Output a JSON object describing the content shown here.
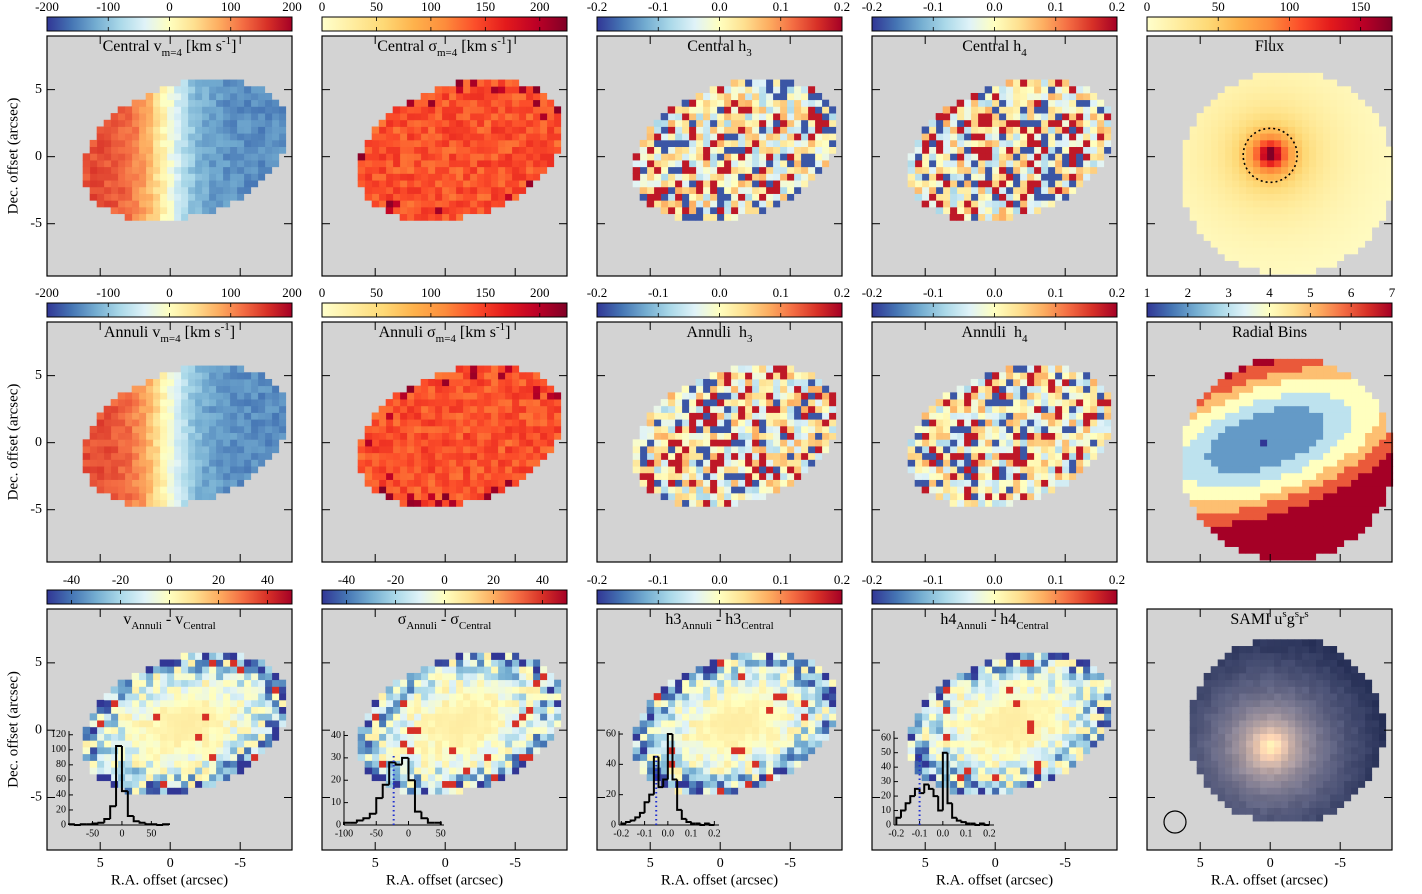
{
  "axes": {
    "xlabel": "R.A. offset (arcsec)",
    "ylabel": "Dec. offset (arcsec)",
    "xlim": [
      8.8,
      -8.7
    ],
    "ylim": [
      -8.9,
      9.0
    ],
    "xticks": [
      5,
      0,
      -5
    ],
    "yticks": [
      -5,
      0,
      5
    ]
  },
  "panels": [
    {
      "title": [
        {
          "text": "Central v"
        },
        {
          "text": "m=4",
          "shift": "sub"
        },
        {
          "text": " [km s"
        },
        {
          "text": "-1",
          "shift": "super"
        },
        {
          "text": "]"
        }
      ],
      "map": "velocity",
      "colorbar": {
        "cmap": "RdYlBu_r",
        "lim": [
          -200,
          200
        ],
        "ticks": [
          -200,
          -100,
          0,
          100,
          200
        ]
      }
    },
    {
      "title": [
        {
          "text": "Central σ"
        },
        {
          "text": "m=4",
          "shift": "sub"
        },
        {
          "text": " [km s"
        },
        {
          "text": "-1",
          "shift": "super"
        },
        {
          "text": "]"
        }
      ],
      "map": "dispersion",
      "colorbar": {
        "cmap": "YlOrRd",
        "lim": [
          0,
          225
        ],
        "ticks": [
          0,
          50,
          100,
          150,
          200
        ]
      }
    },
    {
      "title": [
        {
          "text": "Central h"
        },
        {
          "text": "3",
          "shift": "sub"
        }
      ],
      "map": "moment",
      "colorbar": {
        "cmap": "RdYlBu_r",
        "lim": [
          -0.2,
          0.2
        ],
        "ticks": [
          -0.2,
          -0.1,
          {
            "value": 0,
            "label": "0.0"
          },
          0.1,
          0.2
        ]
      }
    },
    {
      "title": [
        {
          "text": "Central h"
        },
        {
          "text": "4",
          "shift": "sub"
        }
      ],
      "map": "moment",
      "colorbar": {
        "cmap": "RdYlBu_r",
        "lim": [
          -0.2,
          0.2
        ],
        "ticks": [
          -0.2,
          -0.1,
          {
            "value": 0,
            "label": "0.0"
          },
          0.1,
          0.2
        ]
      }
    },
    {
      "title": [
        {
          "text": "Flux"
        }
      ],
      "map": "flux",
      "colorbar": {
        "cmap": "YlOrRd",
        "lim": [
          0,
          172
        ],
        "ticks": [
          0,
          50,
          100,
          150
        ]
      }
    },
    {
      "title": [
        {
          "text": "Annuli v"
        },
        {
          "text": "m=4",
          "shift": "sub"
        },
        {
          "text": " [km s"
        },
        {
          "text": "-1",
          "shift": "super"
        },
        {
          "text": "]"
        }
      ],
      "map": "velocity",
      "colorbar": {
        "cmap": "RdYlBu_r",
        "lim": [
          -200,
          200
        ],
        "ticks": [
          -200,
          -100,
          0,
          100,
          200
        ]
      }
    },
    {
      "title": [
        {
          "text": "Annuli σ"
        },
        {
          "text": "m=4",
          "shift": "sub"
        },
        {
          "text": " [km s"
        },
        {
          "text": "-1",
          "shift": "super"
        },
        {
          "text": "]"
        }
      ],
      "map": "dispersion",
      "colorbar": {
        "cmap": "YlOrRd",
        "lim": [
          0,
          225
        ],
        "ticks": [
          0,
          50,
          100,
          150,
          200
        ]
      }
    },
    {
      "title": [
        {
          "text": "Annuli  h"
        },
        {
          "text": "3",
          "shift": "sub"
        }
      ],
      "map": "moment",
      "colorbar": {
        "cmap": "RdYlBu_r",
        "lim": [
          -0.2,
          0.2
        ],
        "ticks": [
          -0.2,
          -0.1,
          {
            "value": 0,
            "label": "0.0"
          },
          0.1,
          0.2
        ]
      }
    },
    {
      "title": [
        {
          "text": "Annuli  h"
        },
        {
          "text": "4",
          "shift": "sub"
        }
      ],
      "map": "moment",
      "colorbar": {
        "cmap": "RdYlBu_r",
        "lim": [
          -0.2,
          0.2
        ],
        "ticks": [
          -0.2,
          -0.1,
          {
            "value": 0,
            "label": "0.0"
          },
          0.1,
          0.2
        ]
      }
    },
    {
      "title": [
        {
          "text": "Radial Bins"
        }
      ],
      "map": "radial",
      "colorbar": {
        "cmap": "RdYlBu_r",
        "lim": [
          1,
          7
        ],
        "ticks": [
          1,
          2,
          3,
          4,
          5,
          6,
          7
        ]
      }
    },
    {
      "title": [
        {
          "text": "v"
        },
        {
          "text": "Annuli",
          "shift": "sub"
        },
        {
          "text": " - v"
        },
        {
          "text": "Central",
          "shift": "sub"
        }
      ],
      "map": "difference",
      "colorbar": {
        "cmap": "RdYlBu_r",
        "lim": [
          -50,
          50
        ],
        "ticks": [
          -40,
          -20,
          0,
          20,
          40
        ]
      },
      "inset": {
        "bins": [
          -90,
          -80,
          -70,
          -60,
          -50,
          -40,
          -30,
          -20,
          -10,
          0,
          10,
          20,
          30,
          40,
          50,
          60,
          70,
          80
        ],
        "counts": [
          1,
          0,
          1,
          1,
          2,
          3,
          8,
          25,
          105,
          45,
          12,
          5,
          3,
          1,
          1,
          0,
          1
        ],
        "xlim": [
          -90,
          80
        ],
        "ylim": [
          0,
          125
        ],
        "xticks": [
          -50,
          0,
          50
        ],
        "yticks": [
          0,
          20,
          40,
          60,
          80,
          100,
          120
        ]
      }
    },
    {
      "title": [
        {
          "text": "σ"
        },
        {
          "text": "Annuli",
          "shift": "sub"
        },
        {
          "text": " - σ"
        },
        {
          "text": "Central",
          "shift": "sub"
        }
      ],
      "map": "difference",
      "colorbar": {
        "cmap": "RdYlBu_r",
        "lim": [
          -50,
          50
        ],
        "ticks": [
          -40,
          -20,
          0,
          20,
          40
        ]
      },
      "inset": {
        "bins": [
          -100,
          -90,
          -80,
          -70,
          -60,
          -50,
          -40,
          -30,
          -20,
          -10,
          0,
          10,
          20,
          30,
          40,
          50
        ],
        "counts": [
          1,
          1,
          2,
          3,
          5,
          12,
          18,
          28,
          27,
          30,
          20,
          6,
          3,
          1,
          1
        ],
        "xlim": [
          -100,
          55
        ],
        "ylim": [
          0,
          42
        ],
        "xticks": [
          -100,
          -50,
          0,
          50
        ],
        "yticks": [
          0,
          10,
          20,
          30,
          40
        ],
        "marker": -23
      }
    },
    {
      "title": [
        {
          "text": "h3"
        },
        {
          "text": "Annuli",
          "shift": "sub"
        },
        {
          "text": " - h3"
        },
        {
          "text": "Central",
          "shift": "sub"
        }
      ],
      "map": "difference",
      "colorbar": {
        "cmap": "RdYlBu_r",
        "lim": [
          -0.2,
          0.2
        ],
        "ticks": [
          -0.2,
          -0.1,
          {
            "value": 0,
            "label": "0.0"
          },
          0.1,
          0.2
        ]
      },
      "inset": {
        "bins": [
          -0.2,
          -0.18,
          -0.16,
          -0.14,
          -0.12,
          -0.1,
          -0.08,
          -0.06,
          -0.04,
          -0.02,
          0,
          0.02,
          0.04,
          0.06,
          0.08,
          0.1,
          0.12,
          0.14,
          0.16,
          0.18,
          0.2
        ],
        "counts": [
          1,
          2,
          3,
          5,
          8,
          15,
          20,
          45,
          25,
          30,
          60,
          30,
          10,
          4,
          2,
          1,
          1,
          0,
          1,
          0
        ],
        "xlim": [
          -0.21,
          0.22
        ],
        "ylim": [
          0,
          62
        ],
        "xticks": [
          -0.2,
          -0.1,
          {
            "value": 0,
            "label": "0.0"
          },
          0.1,
          0.2
        ],
        "yticks": [
          0,
          20,
          40,
          60
        ],
        "marker": -0.05
      }
    },
    {
      "title": [
        {
          "text": "h4"
        },
        {
          "text": "Annuli",
          "shift": "sub"
        },
        {
          "text": " - h4"
        },
        {
          "text": "Central",
          "shift": "sub"
        }
      ],
      "map": "difference",
      "colorbar": {
        "cmap": "RdYlBu_r",
        "lim": [
          -0.2,
          0.2
        ],
        "ticks": [
          -0.2,
          -0.1,
          {
            "value": 0,
            "label": "0.0"
          },
          0.1,
          0.2
        ]
      },
      "inset": {
        "bins": [
          -0.2,
          -0.18,
          -0.16,
          -0.14,
          -0.12,
          -0.1,
          -0.08,
          -0.06,
          -0.04,
          -0.02,
          0,
          0.02,
          0.04,
          0.06,
          0.08,
          0.1,
          0.12,
          0.14,
          0.16,
          0.18,
          0.2
        ],
        "counts": [
          5,
          10,
          15,
          20,
          25,
          22,
          28,
          25,
          20,
          10,
          50,
          15,
          5,
          3,
          2,
          1,
          1,
          0,
          1,
          0
        ],
        "xlim": [
          -0.21,
          0.22
        ],
        "ylim": [
          0,
          65
        ],
        "xticks": [
          -0.2,
          -0.1,
          {
            "value": 0,
            "label": "0.0"
          },
          0.1,
          0.2
        ],
        "yticks": [
          0,
          10,
          20,
          30,
          40,
          50,
          60
        ],
        "marker": -0.1
      }
    },
    {
      "title": [
        {
          "text": "SAMI u"
        },
        {
          "text": "s",
          "shift": "super"
        },
        {
          "text": "g"
        },
        {
          "text": "s",
          "shift": "super"
        },
        {
          "text": "r"
        },
        {
          "text": "s",
          "shift": "super"
        }
      ],
      "map": "sami"
    }
  ]
}
